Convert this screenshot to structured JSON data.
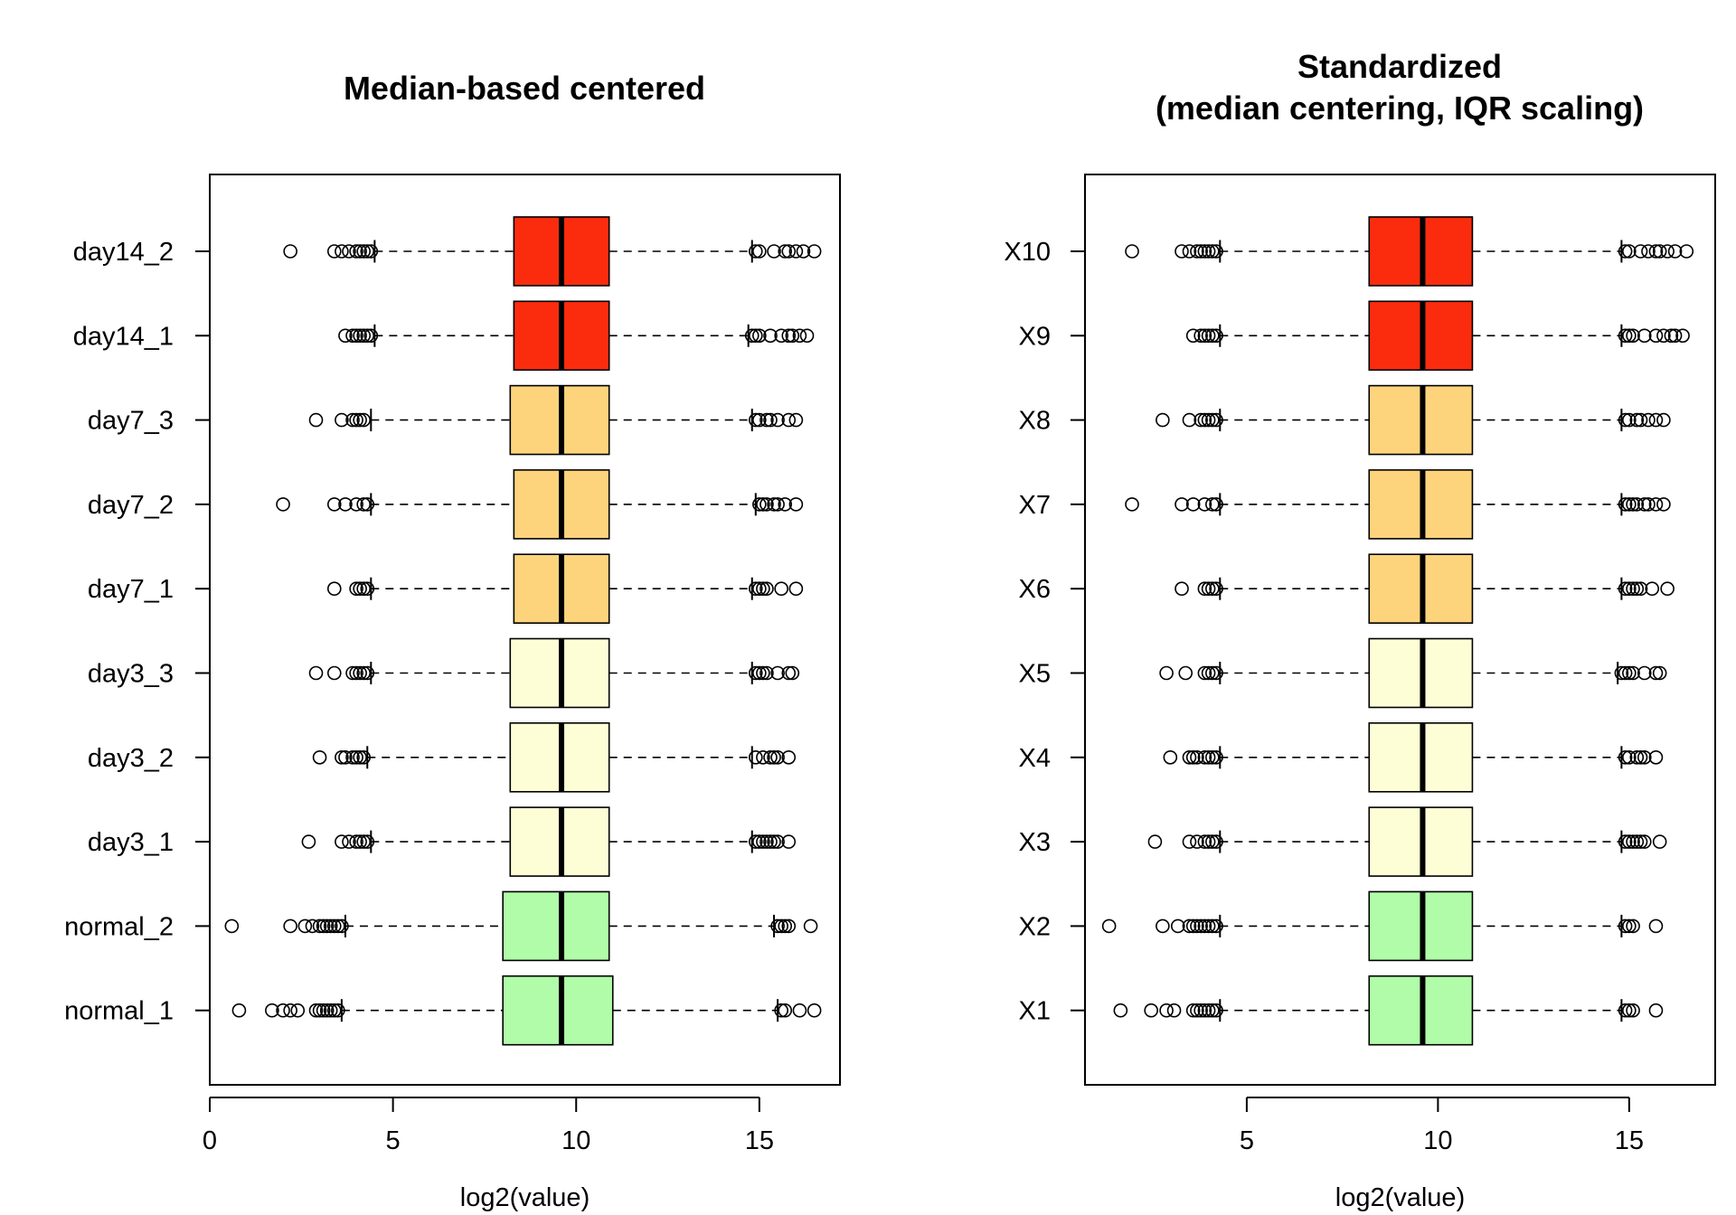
{
  "chart_data": [
    {
      "type": "boxplot",
      "orientation": "horizontal",
      "title": "Median-based centered",
      "xlabel": "log2(value)",
      "ylabel": "",
      "xlim": [
        0,
        17.2
      ],
      "xticks": [
        0,
        5,
        10,
        15
      ],
      "categories": [
        "normal_1",
        "normal_2",
        "day3_1",
        "day3_2",
        "day3_3",
        "day7_1",
        "day7_2",
        "day7_3",
        "day14_1",
        "day14_2"
      ],
      "colors": [
        "#b0fca8",
        "#b0fca8",
        "#fdfdd6",
        "#fdfdd6",
        "#fdfdd6",
        "#fdd47c",
        "#fdd47c",
        "#fdd47c",
        "#fb2c0e",
        "#fb2c0e"
      ],
      "boxes": [
        {
          "whisker_low": 3.6,
          "q1": 8.0,
          "median": 9.6,
          "q3": 11.0,
          "whisker_high": 15.5,
          "outliers": [
            0.8,
            1.7,
            2.0,
            2.2,
            2.4,
            2.9,
            3.0,
            3.1,
            3.2,
            3.3,
            3.4,
            3.5,
            15.6,
            15.7,
            16.1,
            16.5
          ]
        },
        {
          "whisker_low": 3.7,
          "q1": 8.0,
          "median": 9.6,
          "q3": 10.9,
          "whisker_high": 15.4,
          "outliers": [
            0.6,
            2.2,
            2.6,
            2.8,
            3.0,
            3.1,
            3.2,
            3.3,
            3.4,
            3.5,
            3.6,
            15.5,
            15.6,
            15.7,
            15.8,
            16.4
          ]
        },
        {
          "whisker_low": 4.4,
          "q1": 8.2,
          "median": 9.6,
          "q3": 10.9,
          "whisker_high": 14.8,
          "outliers": [
            2.7,
            3.6,
            3.8,
            4.0,
            4.1,
            4.2,
            4.3,
            14.9,
            15.0,
            15.1,
            15.2,
            15.3,
            15.4,
            15.5,
            15.8
          ]
        },
        {
          "whisker_low": 4.3,
          "q1": 8.2,
          "median": 9.6,
          "q3": 10.9,
          "whisker_high": 14.8,
          "outliers": [
            3.0,
            3.6,
            3.7,
            3.9,
            4.0,
            4.1,
            4.2,
            14.9,
            15.1,
            15.3,
            15.4,
            15.5,
            15.8
          ]
        },
        {
          "whisker_low": 4.4,
          "q1": 8.2,
          "median": 9.6,
          "q3": 10.9,
          "whisker_high": 14.8,
          "outliers": [
            2.9,
            3.4,
            3.9,
            4.0,
            4.1,
            4.2,
            4.3,
            14.9,
            15.0,
            15.1,
            15.2,
            15.5,
            15.8,
            15.9
          ]
        },
        {
          "whisker_low": 4.4,
          "q1": 8.3,
          "median": 9.6,
          "q3": 10.9,
          "whisker_high": 14.8,
          "outliers": [
            3.4,
            4.0,
            4.1,
            4.2,
            4.3,
            14.9,
            15.0,
            15.1,
            15.2,
            15.6,
            16.0
          ]
        },
        {
          "whisker_low": 4.4,
          "q1": 8.3,
          "median": 9.6,
          "q3": 10.9,
          "whisker_high": 14.9,
          "outliers": [
            2.0,
            3.4,
            3.7,
            4.0,
            4.2,
            4.3,
            15.0,
            15.1,
            15.2,
            15.4,
            15.5,
            15.7,
            16.0
          ]
        },
        {
          "whisker_low": 4.4,
          "q1": 8.2,
          "median": 9.6,
          "q3": 10.9,
          "whisker_high": 14.8,
          "outliers": [
            2.9,
            3.6,
            3.9,
            4.0,
            4.1,
            4.2,
            14.9,
            15.0,
            15.2,
            15.3,
            15.5,
            15.8,
            16.0
          ]
        },
        {
          "whisker_low": 4.5,
          "q1": 8.3,
          "median": 9.6,
          "q3": 10.9,
          "whisker_high": 14.7,
          "outliers": [
            3.7,
            3.9,
            4.0,
            4.1,
            4.2,
            4.3,
            4.4,
            14.8,
            14.9,
            15.0,
            15.3,
            15.6,
            15.8,
            15.9,
            16.1,
            16.3
          ]
        },
        {
          "whisker_low": 4.5,
          "q1": 8.3,
          "median": 9.6,
          "q3": 10.9,
          "whisker_high": 14.8,
          "outliers": [
            2.2,
            3.4,
            3.6,
            3.8,
            4.0,
            4.1,
            4.2,
            4.3,
            4.4,
            14.9,
            15.0,
            15.4,
            15.7,
            15.8,
            16.0,
            16.2,
            16.5
          ]
        }
      ]
    },
    {
      "type": "boxplot",
      "orientation": "horizontal",
      "title": "Standardized\n(median centering, IQR scaling)",
      "xlabel": "log2(value)",
      "ylabel": "",
      "xlim": [
        0.77,
        17.25
      ],
      "xticks": [
        5,
        10,
        15
      ],
      "categories": [
        "X1",
        "X2",
        "X3",
        "X4",
        "X5",
        "X6",
        "X7",
        "X8",
        "X9",
        "X10"
      ],
      "colors": [
        "#b0fca8",
        "#b0fca8",
        "#fdfdd6",
        "#fdfdd6",
        "#fdfdd6",
        "#fdd47c",
        "#fdd47c",
        "#fdd47c",
        "#fb2c0e",
        "#fb2c0e"
      ],
      "boxes": [
        {
          "whisker_low": 4.3,
          "q1": 8.2,
          "median": 9.6,
          "q3": 10.9,
          "whisker_high": 14.8,
          "outliers": [
            1.7,
            2.5,
            2.9,
            3.1,
            3.6,
            3.7,
            3.8,
            3.9,
            4.0,
            4.1,
            4.2,
            14.9,
            15.0,
            15.1,
            15.7
          ]
        },
        {
          "whisker_low": 4.3,
          "q1": 8.2,
          "median": 9.6,
          "q3": 10.9,
          "whisker_high": 14.8,
          "outliers": [
            1.4,
            2.8,
            3.2,
            3.5,
            3.6,
            3.7,
            3.8,
            3.9,
            4.0,
            4.1,
            4.2,
            14.9,
            15.0,
            15.1,
            15.7
          ]
        },
        {
          "whisker_low": 4.3,
          "q1": 8.2,
          "median": 9.6,
          "q3": 10.9,
          "whisker_high": 14.8,
          "outliers": [
            2.6,
            3.5,
            3.7,
            3.9,
            4.0,
            4.1,
            4.2,
            14.9,
            15.0,
            15.1,
            15.2,
            15.3,
            15.4,
            15.8
          ]
        },
        {
          "whisker_low": 4.3,
          "q1": 8.2,
          "median": 9.6,
          "q3": 10.9,
          "whisker_high": 14.8,
          "outliers": [
            3.0,
            3.5,
            3.6,
            3.7,
            3.9,
            4.0,
            4.1,
            4.2,
            14.9,
            15.0,
            15.2,
            15.3,
            15.4,
            15.7
          ]
        },
        {
          "whisker_low": 4.3,
          "q1": 8.2,
          "median": 9.6,
          "q3": 10.9,
          "whisker_high": 14.7,
          "outliers": [
            2.9,
            3.4,
            3.9,
            4.0,
            4.1,
            4.2,
            14.8,
            14.9,
            15.0,
            15.1,
            15.4,
            15.7,
            15.8
          ]
        },
        {
          "whisker_low": 4.3,
          "q1": 8.2,
          "median": 9.6,
          "q3": 10.9,
          "whisker_high": 14.8,
          "outliers": [
            3.3,
            3.9,
            4.0,
            4.1,
            4.2,
            14.9,
            15.0,
            15.1,
            15.2,
            15.3,
            15.6,
            16.0
          ]
        },
        {
          "whisker_low": 4.3,
          "q1": 8.2,
          "median": 9.6,
          "q3": 10.9,
          "whisker_high": 14.8,
          "outliers": [
            2.0,
            3.3,
            3.6,
            3.9,
            4.1,
            4.2,
            14.9,
            15.0,
            15.1,
            15.2,
            15.4,
            15.5,
            15.7,
            15.9
          ]
        },
        {
          "whisker_low": 4.3,
          "q1": 8.2,
          "median": 9.6,
          "q3": 10.9,
          "whisker_high": 14.8,
          "outliers": [
            2.8,
            3.5,
            3.8,
            3.9,
            4.0,
            4.1,
            4.2,
            14.9,
            15.0,
            15.2,
            15.3,
            15.5,
            15.7,
            15.9
          ]
        },
        {
          "whisker_low": 4.3,
          "q1": 8.2,
          "median": 9.6,
          "q3": 10.9,
          "whisker_high": 14.8,
          "outliers": [
            3.6,
            3.8,
            3.9,
            4.0,
            4.1,
            4.2,
            14.9,
            15.0,
            15.1,
            15.4,
            15.7,
            15.9,
            16.1,
            16.2,
            16.4
          ]
        },
        {
          "whisker_low": 4.3,
          "q1": 8.2,
          "median": 9.6,
          "q3": 10.9,
          "whisker_high": 14.8,
          "outliers": [
            2.0,
            3.3,
            3.5,
            3.7,
            3.8,
            3.9,
            4.0,
            4.1,
            4.2,
            14.9,
            15.0,
            15.3,
            15.5,
            15.7,
            15.8,
            16.0,
            16.2,
            16.5
          ]
        }
      ]
    }
  ]
}
